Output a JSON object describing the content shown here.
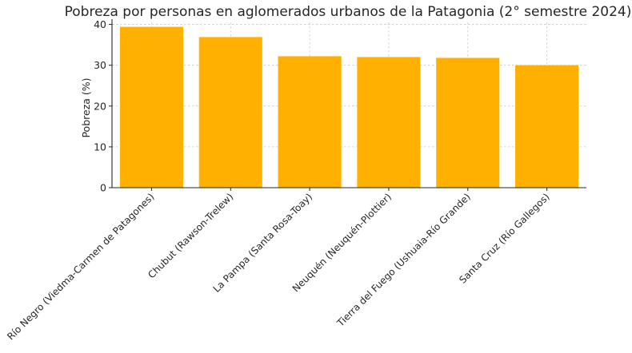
{
  "chart_data": {
    "type": "bar",
    "title": "Pobreza por personas en aglomerados urbanos de la Patagonia (2° semestre 2024)",
    "xlabel": "",
    "ylabel": "Pobreza (%)",
    "ylim": [
      0,
      40.5
    ],
    "yticks": [
      "0",
      "10",
      "20",
      "30",
      "40"
    ],
    "grid": true,
    "bar_color": "#FFB000",
    "categories": [
      "Río Negro (Viedma-Carmen de Patagones)",
      "Chubut (Rawson-Trelew)",
      "La Pampa (Santa Rosa-Toay)",
      "Neuquén (Neuquén-Plottier)",
      "Tierra del Fuego (Ushuaia-Río Grande)",
      "Santa Cruz (Río Gallegos)"
    ],
    "values": [
      39.4,
      36.9,
      32.2,
      32.0,
      31.8,
      30.0
    ]
  }
}
